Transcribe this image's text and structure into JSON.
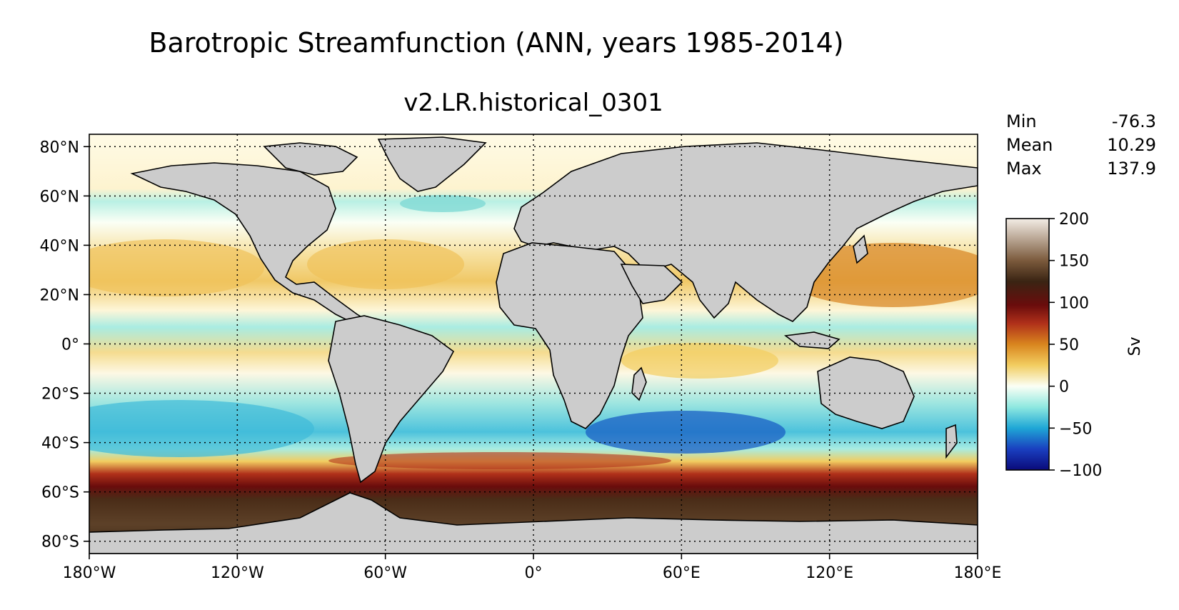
{
  "title": "Barotropic Streamfunction (ANN, years 1985-2014)",
  "subtitle": "v2.LR.historical_0301",
  "stats": [
    {
      "label": "Min",
      "value": "-76.3"
    },
    {
      "label": "Mean",
      "value": "10.29"
    },
    {
      "label": "Max",
      "value": "137.9"
    }
  ],
  "lat_ticks": [
    {
      "value": 80,
      "label": "80°N"
    },
    {
      "value": 60,
      "label": "60°N"
    },
    {
      "value": 40,
      "label": "40°N"
    },
    {
      "value": 20,
      "label": "20°N"
    },
    {
      "value": 0,
      "label": "0°"
    },
    {
      "value": -20,
      "label": "20°S"
    },
    {
      "value": -40,
      "label": "40°S"
    },
    {
      "value": -60,
      "label": "60°S"
    },
    {
      "value": -80,
      "label": "80°S"
    }
  ],
  "lon_ticks": [
    {
      "value": -180,
      "label": "180°W"
    },
    {
      "value": -120,
      "label": "120°W"
    },
    {
      "value": -60,
      "label": "60°W"
    },
    {
      "value": 0,
      "label": "0°"
    },
    {
      "value": 60,
      "label": "60°E"
    },
    {
      "value": 120,
      "label": "120°E"
    },
    {
      "value": 180,
      "label": "180°E"
    }
  ],
  "colorbar": {
    "label": "Sv",
    "min": -100,
    "max": 200,
    "ticks": [
      {
        "value": 200,
        "label": "200"
      },
      {
        "value": 150,
        "label": "150"
      },
      {
        "value": 100,
        "label": "100"
      },
      {
        "value": 50,
        "label": "50"
      },
      {
        "value": 0,
        "label": "0"
      },
      {
        "value": -50,
        "label": "−50"
      },
      {
        "value": -100,
        "label": "−100"
      }
    ],
    "colors": {
      "c_m100": "#0a0a7a",
      "c_m75": "#1a3fbf",
      "c_m50": "#1fa7d6",
      "c_m25": "#8ee8e0",
      "c_0": "#fbfff5",
      "c_25": "#f2cd60",
      "c_50": "#d9851e",
      "c_75": "#b0301a",
      "c_100": "#6a0c0c",
      "c_125": "#3a2413",
      "c_150": "#7b5a3c",
      "c_200": "#f3ede6"
    }
  },
  "land_color": "#cccccc"
}
